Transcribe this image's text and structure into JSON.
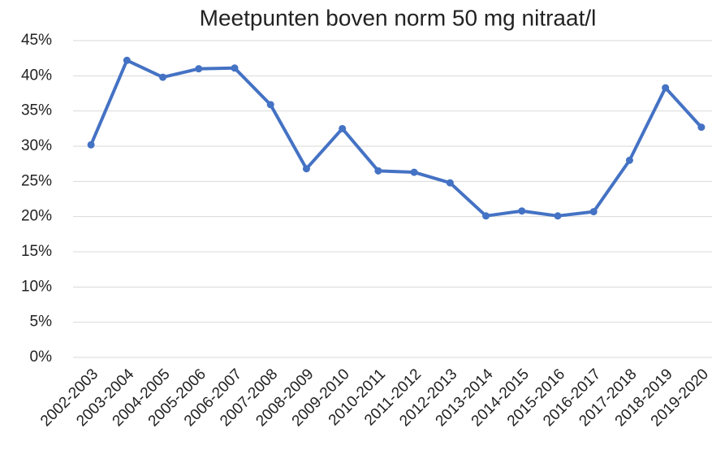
{
  "chart_data": {
    "type": "line",
    "title": "Meetpunten boven norm 50 mg nitraat/l",
    "categories": [
      "2002-2003",
      "2003-2004",
      "2004-2005",
      "2005-2006",
      "2006-2007",
      "2007-2008",
      "2008-2009",
      "2009-2010",
      "2010-2011",
      "2011-2012",
      "2012-2013",
      "2013-2014",
      "2014-2015",
      "2015-2016",
      "2016-2017",
      "2017-2018",
      "2018-2019",
      "2019-2020"
    ],
    "values": [
      30.2,
      42.2,
      39.8,
      41.0,
      41.1,
      35.9,
      26.8,
      32.5,
      26.5,
      26.3,
      24.8,
      20.1,
      20.8,
      20.1,
      20.7,
      28.0,
      38.3,
      32.7
    ],
    "color": "#4472c4",
    "ylim": [
      0,
      45
    ],
    "yticks": [
      {
        "value": 0,
        "label": "0%"
      },
      {
        "value": 5,
        "label": "5%"
      },
      {
        "value": 10,
        "label": "10%"
      },
      {
        "value": 15,
        "label": "15%"
      },
      {
        "value": 20,
        "label": "20%"
      },
      {
        "value": 25,
        "label": "25%"
      },
      {
        "value": 30,
        "label": "30%"
      },
      {
        "value": 35,
        "label": "35%"
      },
      {
        "value": 40,
        "label": "40%"
      },
      {
        "value": 45,
        "label": "45%"
      }
    ],
    "grid": true
  }
}
